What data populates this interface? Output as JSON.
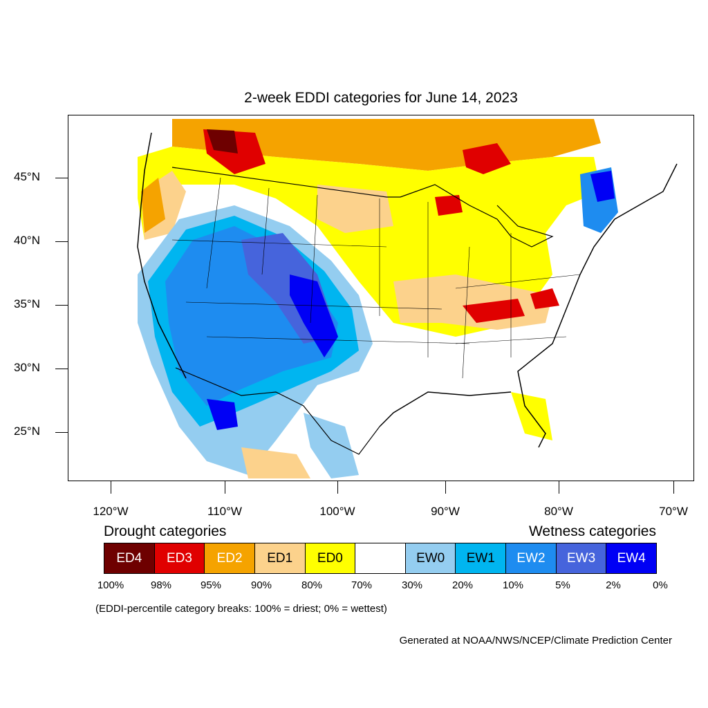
{
  "title": "2-week EDDI categories for June 14, 2023",
  "lat_labels": [
    "45°N",
    "40°N",
    "35°N",
    "30°N",
    "25°N"
  ],
  "lon_labels": [
    "120°W",
    "110°W",
    "100°W",
    "90°W",
    "80°W",
    "70°W"
  ],
  "legend": {
    "drought_title": "Drought categories",
    "wetness_title": "Wetness categories",
    "categories": [
      {
        "label": "ED4",
        "color": "#6e0000",
        "text_color": "#ffffff"
      },
      {
        "label": "ED3",
        "color": "#e00000",
        "text_color": "#ffffff"
      },
      {
        "label": "ED2",
        "color": "#f5a300",
        "text_color": "#ffffff"
      },
      {
        "label": "ED1",
        "color": "#fcd28c",
        "text_color": "#000000"
      },
      {
        "label": "ED0",
        "color": "#ffff00",
        "text_color": "#000000"
      },
      {
        "label": "",
        "color": "#ffffff",
        "text_color": "#000000"
      },
      {
        "label": "EW0",
        "color": "#94cdf0",
        "text_color": "#000000"
      },
      {
        "label": "EW1",
        "color": "#00b5f0",
        "text_color": "#000000"
      },
      {
        "label": "EW2",
        "color": "#1e8cf0",
        "text_color": "#ffffff"
      },
      {
        "label": "EW3",
        "color": "#4664dc",
        "text_color": "#ffffff"
      },
      {
        "label": "EW4",
        "color": "#0000f5",
        "text_color": "#ffffff"
      }
    ],
    "percentiles": [
      "100%",
      "98%",
      "95%",
      "90%",
      "80%",
      "70%",
      "30%",
      "20%",
      "10%",
      "5%",
      "2%",
      "0%"
    ]
  },
  "note": "(EDDI-percentile category breaks: 100% = driest; 0% = wettest)",
  "credit": "Generated at NOAA/NWS/NCEP/Climate Prediction Center"
}
